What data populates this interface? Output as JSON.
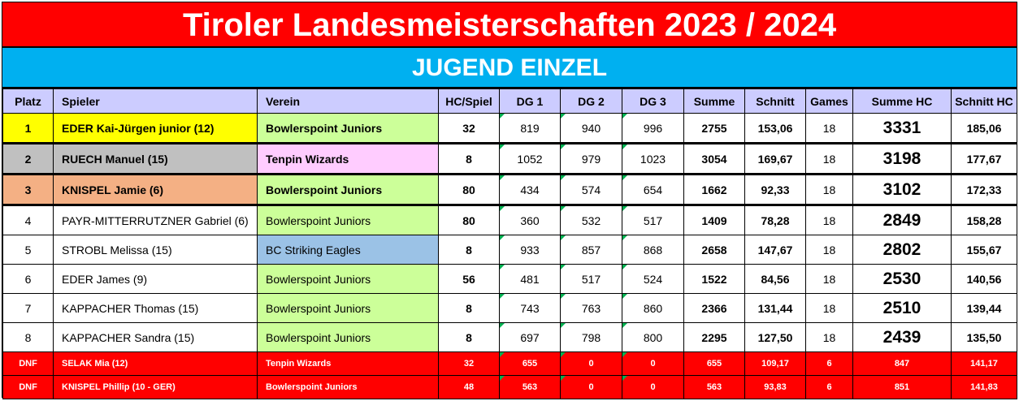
{
  "title": "Tiroler Landesmeisterschaften 2023 / 2024",
  "subtitle": "JUGEND EINZEL",
  "columns": [
    "Platz",
    "Spieler",
    "Verein",
    "HC/Spiel",
    "DG 1",
    "DG 2",
    "DG 3",
    "Summe",
    "Schnitt",
    "Games",
    "Summe HC",
    "Schnitt HC"
  ],
  "rows": [
    {
      "platz": "1",
      "spieler": "EDER Kai-Jürgen junior (12)",
      "verein": "Bowlerspoint Juniors",
      "hc": "32",
      "dg1": "819",
      "dg2": "940",
      "dg3": "996",
      "summe": "2755",
      "schnitt": "153,06",
      "games": "18",
      "summe_hc": "3331",
      "schnitt_hc": "185,06"
    },
    {
      "platz": "2",
      "spieler": "RUECH Manuel (15)",
      "verein": "Tenpin Wizards",
      "hc": "8",
      "dg1": "1052",
      "dg2": "979",
      "dg3": "1023",
      "summe": "3054",
      "schnitt": "169,67",
      "games": "18",
      "summe_hc": "3198",
      "schnitt_hc": "177,67"
    },
    {
      "platz": "3",
      "spieler": "KNISPEL Jamie (6)",
      "verein": "Bowlerspoint Juniors",
      "hc": "80",
      "dg1": "434",
      "dg2": "574",
      "dg3": "654",
      "summe": "1662",
      "schnitt": "92,33",
      "games": "18",
      "summe_hc": "3102",
      "schnitt_hc": "172,33"
    },
    {
      "platz": "4",
      "spieler": "PAYR-MITTERRUTZNER Gabriel (6)",
      "verein": "Bowlerspoint Juniors",
      "hc": "80",
      "dg1": "360",
      "dg2": "532",
      "dg3": "517",
      "summe": "1409",
      "schnitt": "78,28",
      "games": "18",
      "summe_hc": "2849",
      "schnitt_hc": "158,28"
    },
    {
      "platz": "5",
      "spieler": "STROBL Melissa (15)",
      "verein": "BC Striking Eagles",
      "hc": "8",
      "dg1": "933",
      "dg2": "857",
      "dg3": "868",
      "summe": "2658",
      "schnitt": "147,67",
      "games": "18",
      "summe_hc": "2802",
      "schnitt_hc": "155,67"
    },
    {
      "platz": "6",
      "spieler": "EDER James (9)",
      "verein": "Bowlerspoint Juniors",
      "hc": "56",
      "dg1": "481",
      "dg2": "517",
      "dg3": "524",
      "summe": "1522",
      "schnitt": "84,56",
      "games": "18",
      "summe_hc": "2530",
      "schnitt_hc": "140,56"
    },
    {
      "platz": "7",
      "spieler": "KAPPACHER Thomas (15)",
      "verein": "Bowlerspoint Juniors",
      "hc": "8",
      "dg1": "743",
      "dg2": "763",
      "dg3": "860",
      "summe": "2366",
      "schnitt": "131,44",
      "games": "18",
      "summe_hc": "2510",
      "schnitt_hc": "139,44"
    },
    {
      "platz": "8",
      "spieler": "KAPPACHER Sandra (15)",
      "verein": "Bowlerspoint Juniors",
      "hc": "8",
      "dg1": "697",
      "dg2": "798",
      "dg3": "800",
      "summe": "2295",
      "schnitt": "127,50",
      "games": "18",
      "summe_hc": "2439",
      "schnitt_hc": "135,50"
    }
  ],
  "dnf_rows": [
    {
      "platz": "DNF",
      "spieler": "SELAK Mia (12)",
      "verein": "Tenpin Wizards",
      "hc": "32",
      "dg1": "655",
      "dg2": "0",
      "dg3": "0",
      "summe": "655",
      "schnitt": "109,17",
      "games": "6",
      "summe_hc": "847",
      "schnitt_hc": "141,17"
    },
    {
      "platz": "DNF",
      "spieler": "KNISPEL Phillip (10 - GER)",
      "verein": "Bowlerspoint Juniors",
      "hc": "48",
      "dg1": "563",
      "dg2": "0",
      "dg3": "0",
      "summe": "563",
      "schnitt": "93,83",
      "games": "6",
      "summe_hc": "851",
      "schnitt_hc": "141,83"
    }
  ],
  "colors": {
    "title_bg": "#ff0000",
    "subtitle_bg": "#00b0f0",
    "header_bg": "#ccccff",
    "rank1": "#ffff00",
    "rank2": "#c0c0c0",
    "rank3": "#f4b084",
    "club_bowlerspoint": "#ccff99",
    "club_tenpin": "#ffccff",
    "club_eagles": "#9bc2e6",
    "dnf_bg": "#ff0000"
  }
}
